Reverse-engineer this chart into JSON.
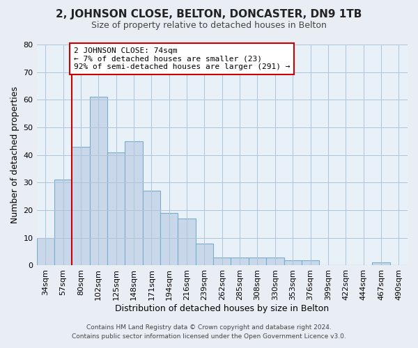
{
  "title": "2, JOHNSON CLOSE, BELTON, DONCASTER, DN9 1TB",
  "subtitle": "Size of property relative to detached houses in Belton",
  "xlabel": "Distribution of detached houses by size in Belton",
  "ylabel": "Number of detached properties",
  "footer_line1": "Contains HM Land Registry data © Crown copyright and database right 2024.",
  "footer_line2": "Contains public sector information licensed under the Open Government Licence v3.0.",
  "bar_labels": [
    "34sqm",
    "57sqm",
    "80sqm",
    "102sqm",
    "125sqm",
    "148sqm",
    "171sqm",
    "194sqm",
    "216sqm",
    "239sqm",
    "262sqm",
    "285sqm",
    "308sqm",
    "330sqm",
    "353sqm",
    "376sqm",
    "399sqm",
    "422sqm",
    "444sqm",
    "467sqm",
    "490sqm"
  ],
  "bar_values": [
    10,
    31,
    43,
    61,
    41,
    45,
    27,
    19,
    17,
    8,
    3,
    3,
    3,
    3,
    2,
    2,
    0,
    0,
    0,
    1,
    0
  ],
  "bar_color": "#c8d8ea",
  "bar_edge_color": "#7aaec8",
  "background_color": "#e8eef4",
  "plot_bg_color": "#e8f0f8",
  "grid_color": "#b0c4d8",
  "marker_line_color": "#cc0000",
  "annotation_text": "2 JOHNSON CLOSE: 74sqm\n← 7% of detached houses are smaller (23)\n92% of semi-detached houses are larger (291) →",
  "annotation_box_color": "#ffffff",
  "annotation_box_edge": "#cc0000",
  "ylim": [
    0,
    80
  ],
  "yticks": [
    0,
    10,
    20,
    30,
    40,
    50,
    60,
    70,
    80
  ],
  "title_fontsize": 11,
  "subtitle_fontsize": 9,
  "axis_label_fontsize": 9,
  "tick_fontsize": 8,
  "annotation_fontsize": 8
}
